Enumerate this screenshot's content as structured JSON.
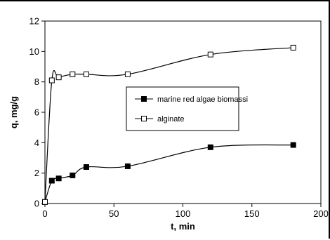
{
  "chart_data": {
    "type": "line",
    "xlabel": "t, min",
    "ylabel": "q, mg/g",
    "xlim": [
      0,
      200
    ],
    "ylim": [
      0,
      12
    ],
    "x_ticks": [
      0,
      50,
      100,
      150,
      200
    ],
    "y_ticks": [
      0,
      2,
      4,
      6,
      8,
      10,
      12
    ],
    "grid": false,
    "legend_placement": "center-right",
    "series": [
      {
        "name": "marine red algae biomassi",
        "marker": "filled-square",
        "color": "#000000",
        "x": [
          0,
          5,
          10,
          20,
          30,
          60,
          120,
          180
        ],
        "y": [
          0.1,
          1.5,
          1.65,
          1.85,
          2.4,
          2.45,
          3.7,
          3.85
        ]
      },
      {
        "name": "alginate",
        "marker": "open-square",
        "color": "#000000",
        "x": [
          0,
          5,
          10,
          20,
          30,
          60,
          120,
          180
        ],
        "y": [
          0.1,
          8.1,
          8.3,
          8.5,
          8.5,
          8.5,
          9.8,
          10.25
        ]
      }
    ]
  }
}
